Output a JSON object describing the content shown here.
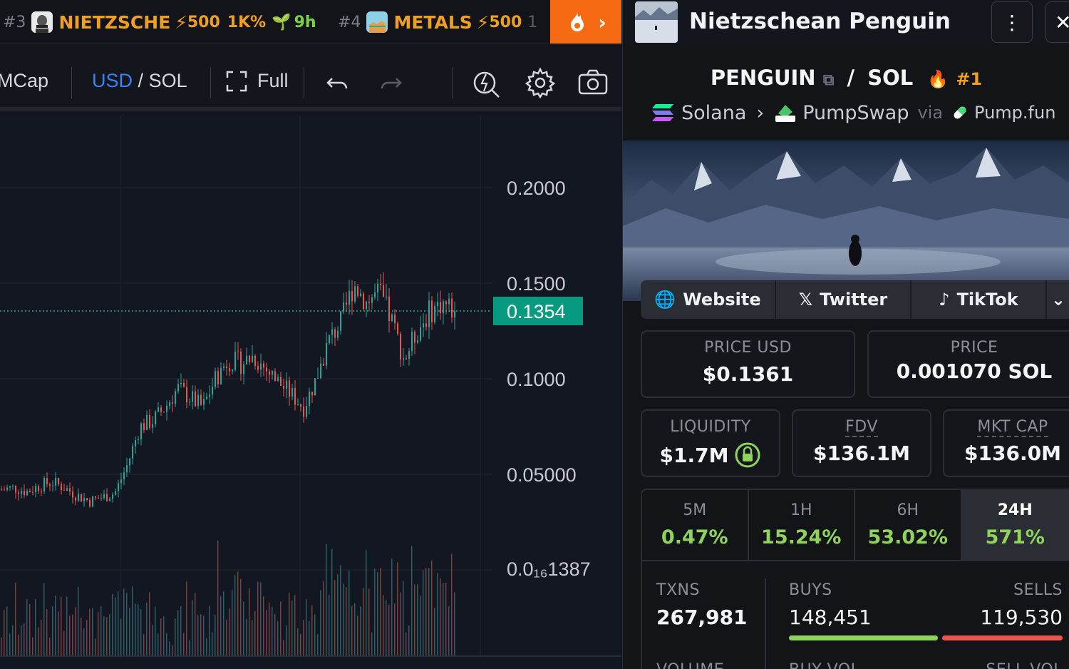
{
  "ticker": {
    "items": [
      {
        "rank": "#3",
        "name": "NIETZSCHE",
        "boost": "500",
        "pct": "1K%",
        "age": "9h"
      },
      {
        "rank": "#4",
        "name": "METALS",
        "boost": "500",
        "more": "1"
      }
    ]
  },
  "toolbar": {
    "mcap": "MCap",
    "usd": "USD",
    "slash": "/",
    "sol": "SOL",
    "full": "Full"
  },
  "chart_data": {
    "type": "candlestick",
    "price_axis_labels": [
      "0.2000",
      "0.1500",
      "0.1000",
      "0.05000",
      "0.0₁₆1387"
    ],
    "last_price": "0.1354",
    "colors": {
      "up": "#26a69a",
      "down": "#ef5350",
      "last_price_bg": "#089981"
    },
    "close_trend": [
      0.042,
      0.043,
      0.041,
      0.044,
      0.046,
      0.043,
      0.039,
      0.036,
      0.038,
      0.04,
      0.055,
      0.075,
      0.078,
      0.085,
      0.095,
      0.09,
      0.085,
      0.1,
      0.11,
      0.108,
      0.112,
      0.105,
      0.098,
      0.092,
      0.085,
      0.1,
      0.12,
      0.13,
      0.15,
      0.14,
      0.145,
      0.13,
      0.11,
      0.125,
      0.135,
      0.14,
      0.1354
    ]
  },
  "panel": {
    "title": "Nietzschean Penguin",
    "pair_base": "PENGUIN",
    "pair_sep": "/",
    "pair_quote": "SOL",
    "pair_rank": "#1",
    "chain": "Solana",
    "dex": "PumpSwap",
    "via": "via",
    "launchpad": "Pump.fun",
    "links": [
      "Website",
      "Twitter",
      "TikTok"
    ],
    "price_usd_label": "PRICE USD",
    "price_usd": "$0.1361",
    "price_sol_label": "PRICE",
    "price_sol": "0.001070 SOL",
    "liquidity_label": "LIQUIDITY",
    "liquidity": "$1.7M",
    "fdv_label": "FDV",
    "fdv": "$136.1M",
    "mcap_label": "MKT CAP",
    "mcap": "$136.0M",
    "timeframes": [
      {
        "label": "5M",
        "value": "0.47%"
      },
      {
        "label": "1H",
        "value": "15.24%"
      },
      {
        "label": "6H",
        "value": "53.02%"
      },
      {
        "label": "24H",
        "value": "571%"
      }
    ],
    "txns_label": "TXNS",
    "txns": "267,981",
    "buys_label": "BUYS",
    "buys": "148,451",
    "sells_label": "SELLS",
    "sells": "119,530",
    "buy_share": 0.554,
    "volume_label": "VOLUME",
    "buy_vol_label": "BUY VOL",
    "sell_vol_label": "SELL VOL"
  }
}
